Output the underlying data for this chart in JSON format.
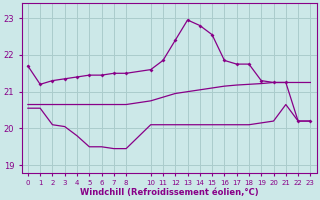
{
  "xlabel": "Windchill (Refroidissement éolien,°C)",
  "background_color": "#cce8e8",
  "grid_color": "#aacccc",
  "line_color": "#880088",
  "ylim": [
    18.8,
    23.4
  ],
  "xlim": [
    -0.5,
    23.5
  ],
  "yticks": [
    19,
    20,
    21,
    22,
    23
  ],
  "xticks": [
    0,
    1,
    2,
    3,
    4,
    5,
    6,
    7,
    8,
    10,
    11,
    12,
    13,
    14,
    15,
    16,
    17,
    18,
    19,
    20,
    21,
    22,
    23
  ],
  "line_top_hours": [
    0,
    1,
    2,
    3,
    4,
    5,
    6,
    7,
    8,
    10,
    11,
    12,
    13,
    14,
    15,
    16,
    17,
    18,
    19,
    20,
    21,
    22,
    23
  ],
  "line_top_vals": [
    21.7,
    21.2,
    21.3,
    21.35,
    21.4,
    21.45,
    21.45,
    21.5,
    21.5,
    21.6,
    21.85,
    22.4,
    22.95,
    22.8,
    22.55,
    21.85,
    21.75,
    21.75,
    21.3,
    21.25,
    21.25,
    20.2,
    20.2
  ],
  "line_mid_hours": [
    0,
    1,
    2,
    3,
    4,
    5,
    6,
    7,
    8,
    10,
    11,
    12,
    13,
    14,
    15,
    16,
    17,
    18,
    19,
    20,
    21,
    22,
    23
  ],
  "line_mid_vals": [
    20.65,
    20.65,
    20.65,
    20.65,
    20.65,
    20.65,
    20.65,
    20.65,
    20.65,
    20.75,
    20.85,
    20.95,
    21.0,
    21.05,
    21.1,
    21.15,
    21.18,
    21.2,
    21.22,
    21.25,
    21.25,
    21.25,
    21.25
  ],
  "line_bot_hours": [
    0,
    1,
    2,
    3,
    4,
    5,
    6,
    7,
    8,
    10,
    11,
    12,
    13,
    14,
    15,
    16,
    17,
    18,
    19,
    20,
    21,
    22,
    23
  ],
  "line_bot_vals": [
    20.55,
    20.55,
    20.1,
    20.05,
    19.8,
    19.5,
    19.5,
    19.45,
    19.45,
    20.1,
    20.1,
    20.1,
    20.1,
    20.1,
    20.1,
    20.1,
    20.1,
    20.1,
    20.15,
    20.2,
    20.65,
    20.2,
    20.2
  ]
}
